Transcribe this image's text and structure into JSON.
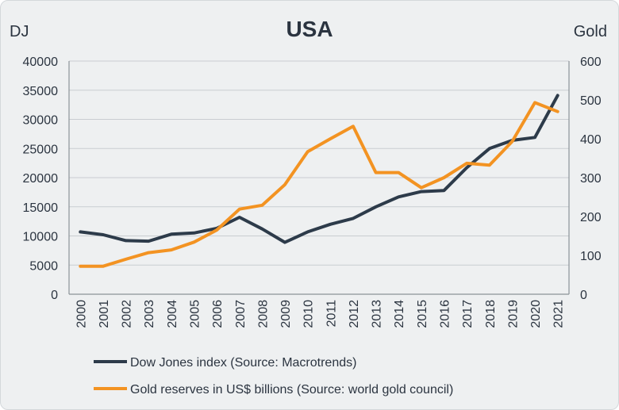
{
  "chart_data": {
    "type": "line",
    "title": "USA",
    "ylabel_left": "DJ",
    "ylabel_right": "Gold",
    "x": [
      "2000",
      "2001",
      "2002",
      "2003",
      "2004",
      "2005",
      "2006",
      "2007",
      "2008",
      "2009",
      "2010",
      "2011",
      "2012",
      "2013",
      "2014",
      "2015",
      "2016",
      "2017",
      "2018",
      "2019",
      "2020",
      "2021"
    ],
    "ylim_left": [
      0,
      40000
    ],
    "yticks_left": [
      0,
      5000,
      10000,
      15000,
      20000,
      25000,
      30000,
      35000,
      40000
    ],
    "ylim_right": [
      0,
      600
    ],
    "yticks_right": [
      0,
      100,
      200,
      300,
      400,
      500,
      600
    ],
    "grid": true,
    "legend_position": "bottom",
    "series": [
      {
        "name": "Dow Jones index (Source: Macrotrends)",
        "axis": "left",
        "color": "#2d3b4a",
        "values": [
          10700,
          10200,
          9200,
          9100,
          10300,
          10500,
          11300,
          13200,
          11200,
          8900,
          10700,
          12000,
          13000,
          15000,
          16700,
          17600,
          17800,
          21700,
          25000,
          26400,
          26900,
          34100
        ]
      },
      {
        "name": "Gold reserves in US$ billions (Source: world gold council)",
        "axis": "right",
        "color": "#f39322",
        "values": [
          72,
          72,
          90,
          107,
          114,
          134,
          165,
          219,
          229,
          282,
          367,
          400,
          432,
          313,
          313,
          274,
          300,
          337,
          332,
          393,
          493,
          470
        ]
      }
    ]
  }
}
